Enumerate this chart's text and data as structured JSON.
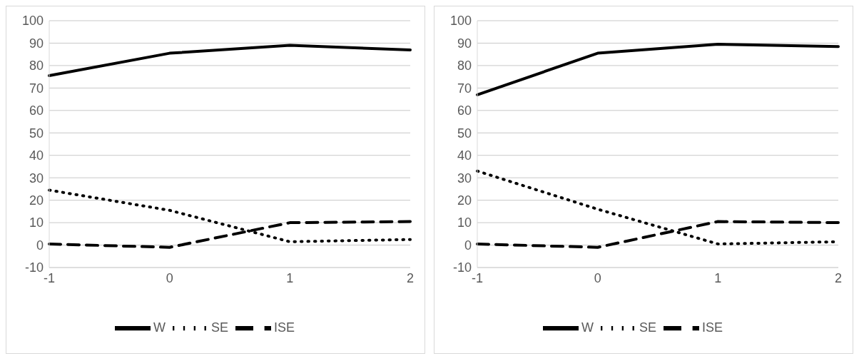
{
  "chart_data": [
    {
      "type": "line",
      "categories": [
        "-1",
        "0",
        "1",
        "2"
      ],
      "ylim": [
        -10,
        100
      ],
      "yticks": [
        -10,
        0,
        10,
        20,
        30,
        40,
        50,
        60,
        70,
        80,
        90,
        100
      ],
      "grid": "y",
      "legend": "bottom",
      "marker": "none",
      "series": [
        {
          "name": "W",
          "color": "#000000",
          "line_style": "solid",
          "values": [
            75.5,
            85.5,
            89,
            87
          ]
        },
        {
          "name": "SE",
          "color": "#000000",
          "line_style": "dotted",
          "values": [
            24.5,
            15.5,
            1.5,
            2.5
          ]
        },
        {
          "name": "ISE",
          "color": "#000000",
          "line_style": "dashed",
          "values": [
            0.5,
            -1,
            10,
            10.5
          ]
        }
      ]
    },
    {
      "type": "line",
      "categories": [
        "-1",
        "0",
        "1",
        "2"
      ],
      "ylim": [
        -10,
        100
      ],
      "yticks": [
        -10,
        0,
        10,
        20,
        30,
        40,
        50,
        60,
        70,
        80,
        90,
        100
      ],
      "grid": "y",
      "legend": "bottom",
      "marker": "none",
      "series": [
        {
          "name": "W",
          "color": "#000000",
          "line_style": "solid",
          "values": [
            67,
            85.5,
            89.5,
            88.5
          ]
        },
        {
          "name": "SE",
          "color": "#000000",
          "line_style": "dotted",
          "values": [
            33,
            16,
            0.5,
            1.5
          ]
        },
        {
          "name": "ISE",
          "color": "#000000",
          "line_style": "dashed",
          "values": [
            0.5,
            -1,
            10.5,
            10
          ]
        }
      ]
    }
  ]
}
